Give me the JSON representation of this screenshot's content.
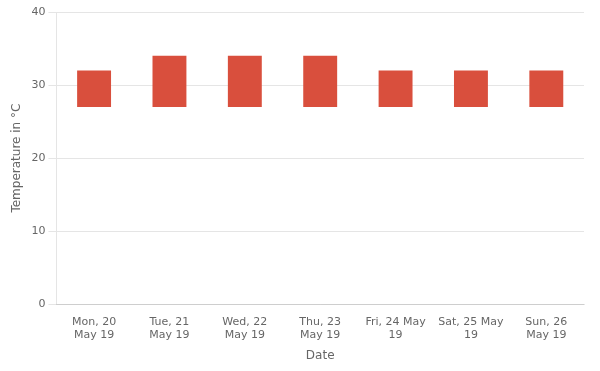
{
  "chart_data": {
    "type": "bar",
    "categories": [
      "Mon, 20\nMay 19",
      "Tue, 21\nMay 19",
      "Wed, 22\nMay 19",
      "Thu, 23\nMay 19",
      "Fri, 24 May\n19",
      "Sat, 25 May\n19",
      "Sun, 26\nMay 19"
    ],
    "low": [
      27,
      27,
      27,
      27,
      27,
      27,
      27
    ],
    "high": [
      32,
      34,
      34,
      34,
      32,
      32,
      32
    ],
    "color": "#d94f3d",
    "xlabel": "Date",
    "ylabel": "Temperature in °C",
    "ylim": [
      0,
      40
    ],
    "yticks": [
      0,
      10,
      20,
      30,
      40
    ],
    "grid": true
  }
}
